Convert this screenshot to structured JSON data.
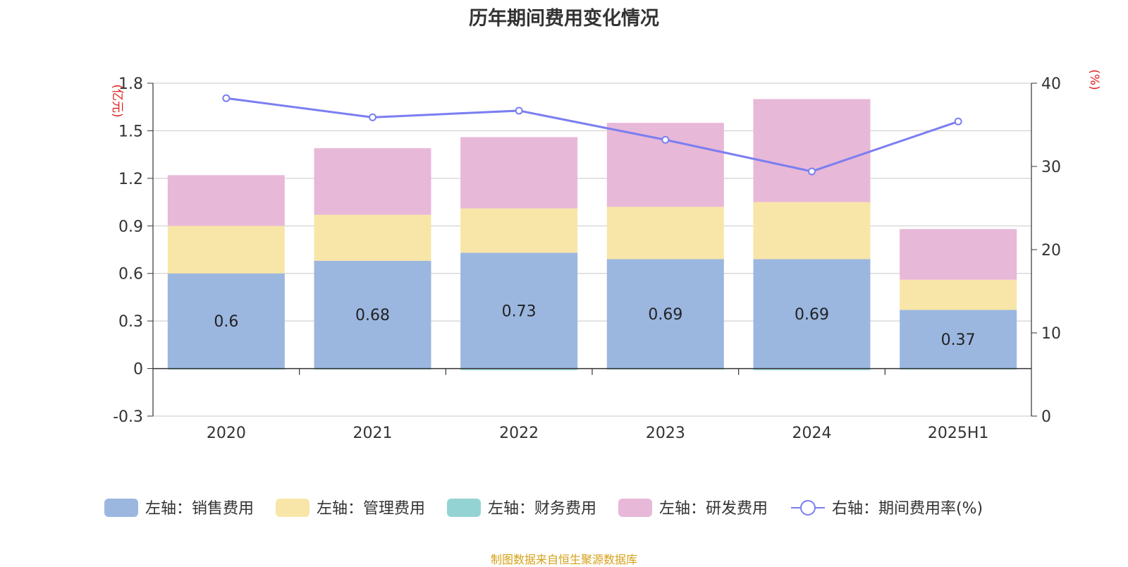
{
  "chart_data": {
    "type": "bar",
    "title": "历年期间费用变化情况",
    "categories": [
      "2020",
      "2021",
      "2022",
      "2023",
      "2024",
      "2025H1"
    ],
    "series": [
      {
        "name": "左轴：销售费用",
        "axis": "left",
        "kind": "stacked-bar",
        "color": "#9bb7e0",
        "values": [
          0.6,
          0.68,
          0.73,
          0.69,
          0.69,
          0.37
        ],
        "data_labels": [
          "0.6",
          "0.68",
          "0.73",
          "0.69",
          "0.69",
          "0.37"
        ]
      },
      {
        "name": "左轴：管理费用",
        "axis": "left",
        "kind": "stacked-bar",
        "color": "#f8e6a8",
        "values": [
          0.3,
          0.29,
          0.28,
          0.33,
          0.36,
          0.19
        ]
      },
      {
        "name": "左轴：财务费用",
        "axis": "left",
        "kind": "stacked-bar",
        "color": "#94d3d3",
        "values": [
          -0.005,
          -0.005,
          -0.01,
          -0.005,
          -0.01,
          -0.005
        ]
      },
      {
        "name": "左轴：研发费用",
        "axis": "left",
        "kind": "stacked-bar",
        "color": "#e8b8d8",
        "values": [
          0.32,
          0.42,
          0.45,
          0.53,
          0.65,
          0.32
        ]
      },
      {
        "name": "右轴：期间费用率(%)",
        "axis": "right",
        "kind": "line",
        "color": "#7b7ef0",
        "values": [
          38.2,
          35.9,
          36.7,
          33.2,
          29.4,
          35.4
        ]
      }
    ],
    "left_axis": {
      "unit": "(亿元)",
      "min": -0.3,
      "max": 1.8,
      "ticks": [
        "-0.3",
        "0",
        "0.3",
        "0.6",
        "0.9",
        "1.2",
        "1.5",
        "1.8"
      ]
    },
    "right_axis": {
      "unit": "(%)",
      "min": 0,
      "max": 40,
      "ticks": [
        "0",
        "10",
        "20",
        "30",
        "40"
      ]
    },
    "grid": true,
    "legend_position": "bottom"
  },
  "source_note": "制图数据来自恒生聚源数据库"
}
